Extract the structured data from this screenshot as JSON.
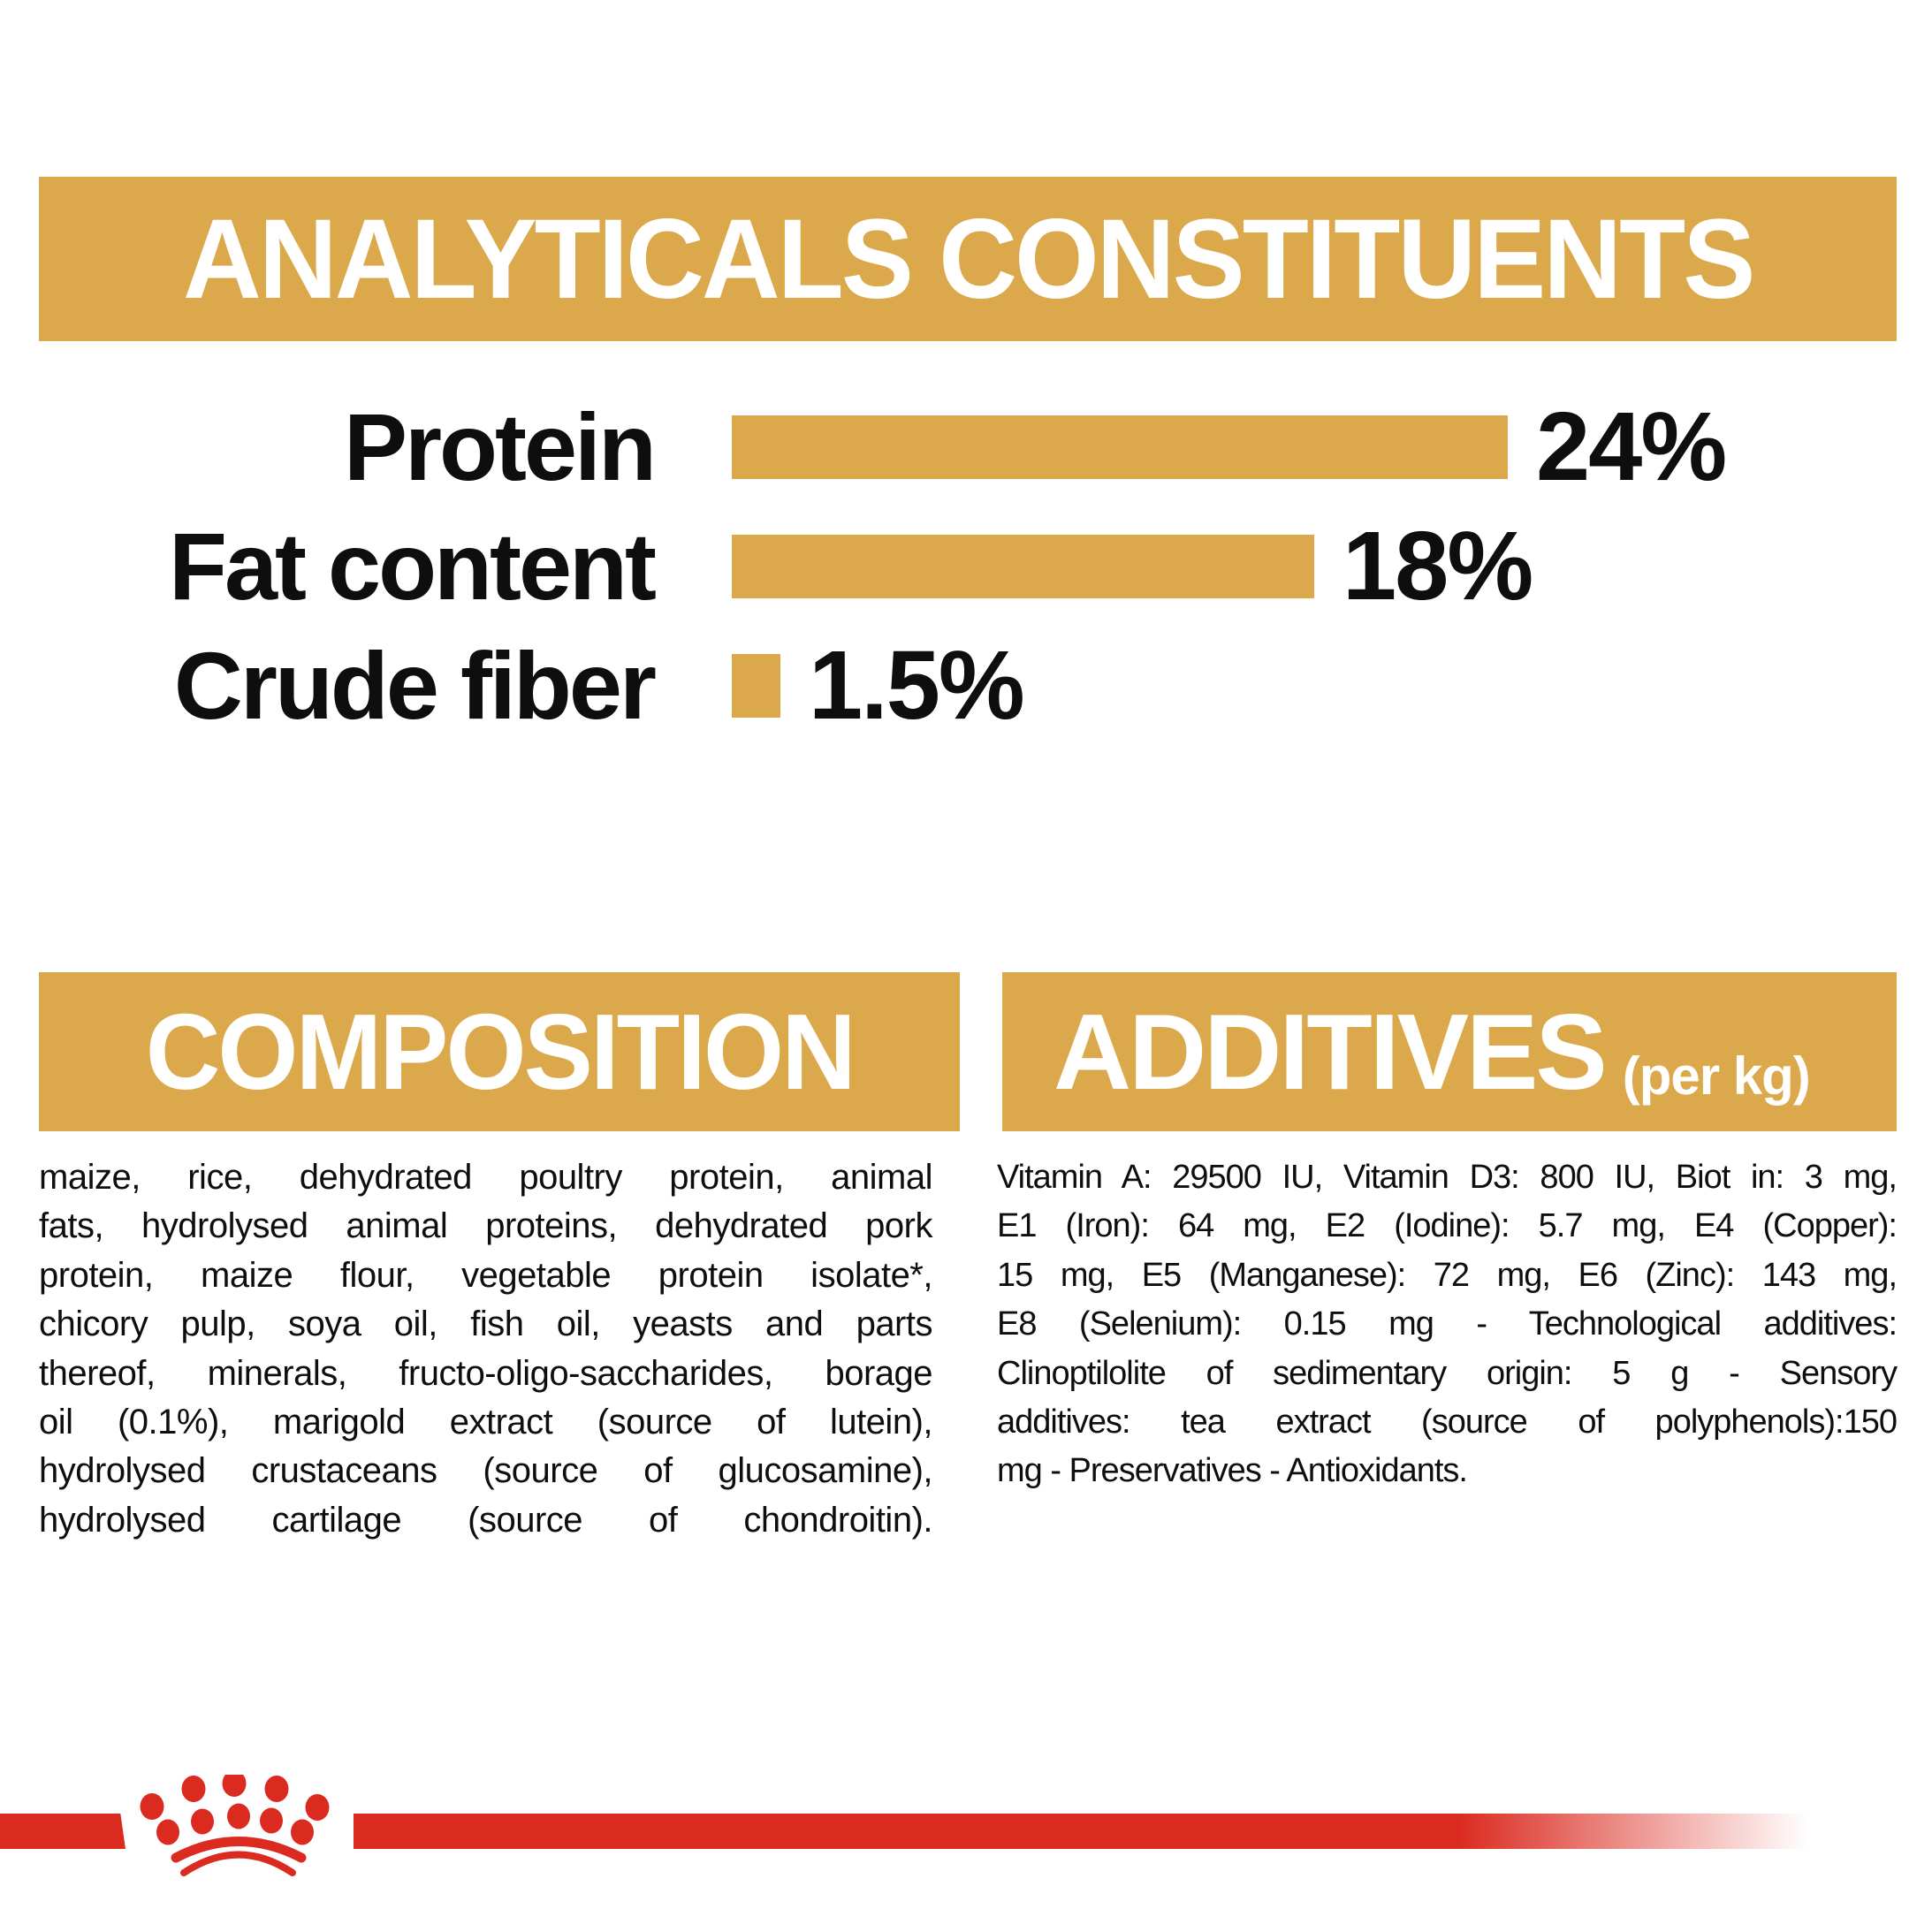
{
  "colors": {
    "gold": "#DBA94B",
    "red": "#DB2B21",
    "text": "#0E0E0E",
    "banner_text": "#FFFFFF",
    "background": "#FFFFFF"
  },
  "analyticals_banner": {
    "title": "ANALYTICALS CONSTITUENTS"
  },
  "chart_data": {
    "type": "bar",
    "orientation": "horizontal",
    "title": "ANALYTICALS CONSTITUENTS",
    "categories": [
      "Protein",
      "Fat content",
      "Crude fiber"
    ],
    "values": [
      24,
      18,
      1.5
    ],
    "value_labels": [
      "24%",
      "18%",
      "1.5%"
    ],
    "unit": "%",
    "xlim": [
      0,
      26
    ],
    "bar_color": "#DBA94B",
    "grid": false,
    "legend": false
  },
  "composition": {
    "title": "COMPOSITION",
    "lines": [
      "maize, rice, dehydrated poultry protein, animal",
      "fats, hydrolysed animal proteins, dehydrated pork",
      "protein, maize flour, vegetable protein isolate*,",
      "chicory pulp, soya oil, fish oil, yeasts and parts",
      "thereof, minerals, fructo-oligo-saccharides, borage",
      "oil (0.1%), marigold extract (source of lutein),",
      "hydrolysed crustaceans (source of glucosamine),",
      "hydrolysed cartilage (source of chondroitin)."
    ]
  },
  "additives": {
    "title": "ADDITIVES",
    "suffix": "(per kg)",
    "lines": [
      "Vitamin A: 29500 IU, Vitamin D3: 800 IU, Biot in: 3 mg,",
      "E1 (Iron): 64 mg, E2 (Iodine): 5.7 mg, E4 (Copper):",
      "15 mg, E5 (Manganese): 72 mg, E6 (Zinc): 143 mg,",
      "E8 (Selenium): 0.15 mg - Technological additives:",
      "Clinoptilolite of sedimentary origin: 5 g - Sensory",
      "additives: tea extract (source of polyphenols):150",
      "mg - Preservatives - Antioxidants."
    ]
  },
  "footer": {
    "logo": "royal-canin-crown"
  }
}
